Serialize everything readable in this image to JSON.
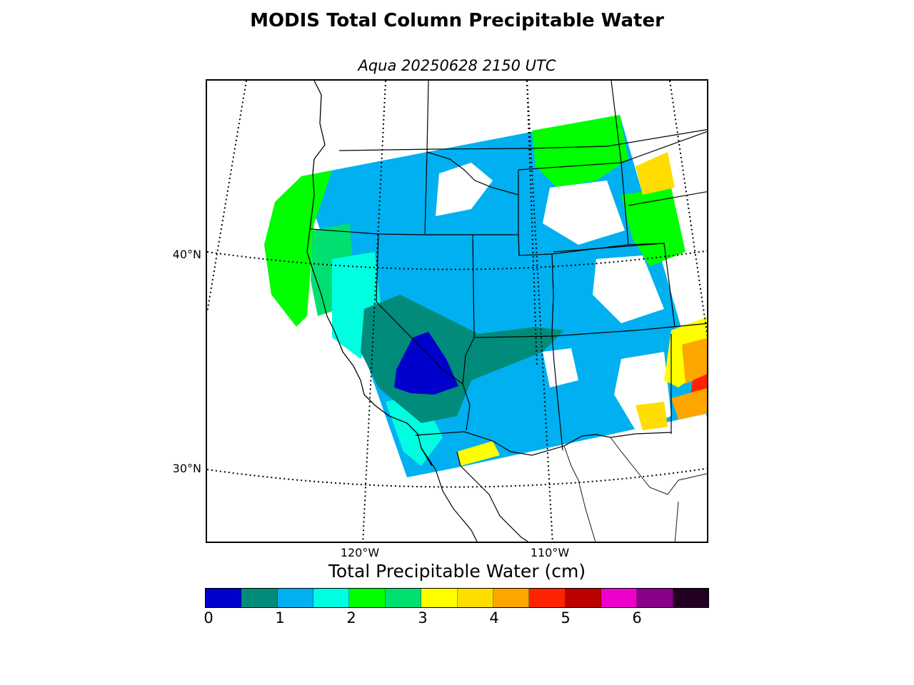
{
  "title": "MODIS Total Column Precipitable Water",
  "subtitle": "Aqua 20250628 2150 UTC",
  "map": {
    "projection": "lambert-conformal",
    "lat_labels": [
      "40°N",
      "30°N"
    ],
    "lon_labels": [
      "120°W",
      "110°W"
    ],
    "features": [
      "coastline",
      "country-borders",
      "state-borders",
      "lat-lon-graticule"
    ]
  },
  "colorbar": {
    "title": "Total Precipitable Water (cm)",
    "tick_labels": [
      "0",
      "1",
      "2",
      "3",
      "4",
      "5",
      "6"
    ],
    "bins_cm": [
      0,
      0.5,
      1,
      1.5,
      2,
      2.5,
      3,
      3.5,
      4,
      4.5,
      5,
      5.5,
      6,
      6.5,
      7
    ],
    "colors": [
      "#0000cc",
      "#008b7a",
      "#00b0f0",
      "#00ffe0",
      "#00ff00",
      "#00e070",
      "#ffff00",
      "#ffdd00",
      "#ffa500",
      "#ff2200",
      "#bb0000",
      "#ee00cc",
      "#880088",
      "#220022"
    ]
  },
  "chart_data": {
    "type": "heatmap",
    "title": "MODIS Total Column Precipitable Water",
    "subtitle": "Aqua 20250628 2150 UTC",
    "colorbar_label": "Total Precipitable Water (cm)",
    "colorbar_range": [
      0,
      7
    ],
    "colorbar_ticks": [
      0,
      1,
      2,
      3,
      4,
      5,
      6
    ]
  }
}
